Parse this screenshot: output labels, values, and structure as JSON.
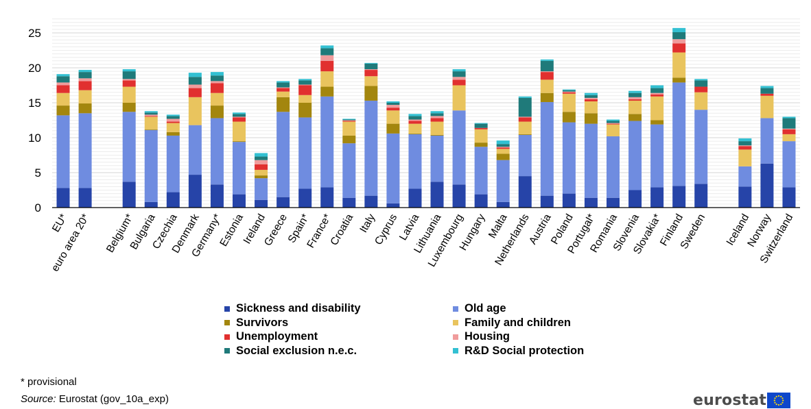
{
  "chart_data": {
    "type": "bar",
    "stacked": true,
    "yticks": [
      0,
      5,
      10,
      15,
      20,
      25
    ],
    "ylim": [
      0,
      27
    ],
    "grid": true,
    "legend_position": "bottom",
    "categories": [
      "EU*",
      "euro area 20*",
      "",
      "Belgium*",
      "Bulgaria",
      "Czechia",
      "Denmark",
      "Germany*",
      "Estonia",
      "Ireland",
      "Greece",
      "Spain*",
      "France*",
      "Croatia",
      "Italy",
      "Cyprus",
      "Latvia",
      "Lithuania",
      "Luxembourg",
      "Hungary",
      "Malta",
      "Netherlands",
      "Austria",
      "Poland",
      "Portugal*",
      "Romania",
      "Slovenia",
      "Slovakia*",
      "Finland",
      "Sweden",
      "",
      "Iceland",
      "Norway",
      "Switzerland"
    ],
    "series": [
      {
        "name": "Sickness and disability",
        "color": "#2644a8",
        "values": [
          2.8,
          2.8,
          null,
          3.7,
          0.8,
          2.2,
          4.7,
          3.3,
          1.9,
          1.1,
          1.5,
          2.7,
          2.9,
          1.4,
          1.7,
          0.6,
          2.7,
          3.7,
          3.3,
          1.9,
          0.8,
          4.5,
          1.7,
          2.0,
          1.4,
          1.4,
          2.5,
          2.9,
          3.1,
          3.4,
          null,
          3.0,
          6.3,
          2.9
        ]
      },
      {
        "name": "Old age",
        "color": "#6f8ce0",
        "values": [
          10.4,
          10.7,
          null,
          10.0,
          10.3,
          8.1,
          7.1,
          9.5,
          7.5,
          3.1,
          12.2,
          10.2,
          13.0,
          7.8,
          13.6,
          10.0,
          7.8,
          6.6,
          10.6,
          6.8,
          6.0,
          5.9,
          13.4,
          10.2,
          10.6,
          8.8,
          9.9,
          9.0,
          14.8,
          10.6,
          null,
          2.9,
          6.5,
          6.6
        ]
      },
      {
        "name": "Survivors",
        "color": "#a3860e",
        "values": [
          1.4,
          1.4,
          null,
          1.3,
          0.1,
          0.5,
          0.0,
          1.8,
          0.1,
          0.4,
          2.1,
          2.1,
          1.4,
          1.1,
          2.1,
          1.4,
          0.1,
          0.1,
          0.0,
          0.6,
          0.9,
          0.1,
          1.3,
          1.5,
          1.5,
          0.0,
          1.0,
          0.6,
          0.7,
          0.0,
          null,
          0.0,
          0.0,
          0.0
        ]
      },
      {
        "name": "Family and children",
        "color": "#e9c45e",
        "values": [
          1.8,
          1.9,
          null,
          2.3,
          1.8,
          1.3,
          4.0,
          1.8,
          2.8,
          0.8,
          0.8,
          1.1,
          2.2,
          2.0,
          1.4,
          1.9,
          1.4,
          1.9,
          3.6,
          1.9,
          0.7,
          1.8,
          1.9,
          2.6,
          1.7,
          1.7,
          1.9,
          3.4,
          3.6,
          2.5,
          null,
          2.4,
          3.2,
          1.0
        ]
      },
      {
        "name": "Unemployment",
        "color": "#e1302f",
        "values": [
          1.1,
          1.3,
          null,
          0.9,
          0.1,
          0.2,
          1.3,
          1.4,
          0.6,
          0.8,
          0.5,
          1.4,
          1.5,
          0.1,
          0.9,
          0.4,
          0.4,
          0.5,
          0.8,
          0.2,
          0.2,
          0.6,
          1.1,
          0.2,
          0.3,
          0.1,
          0.2,
          0.3,
          1.3,
          0.8,
          null,
          0.5,
          0.3,
          0.7
        ]
      },
      {
        "name": "Housing",
        "color": "#f09c9c",
        "values": [
          0.4,
          0.4,
          null,
          0.2,
          0.2,
          0.4,
          0.5,
          0.3,
          0.1,
          0.6,
          0.1,
          0.1,
          0.8,
          0.1,
          0.1,
          0.4,
          0.2,
          0.3,
          0.4,
          0.0,
          0.1,
          0.1,
          0.1,
          0.1,
          0.2,
          0.1,
          0.3,
          0.2,
          0.6,
          0.0,
          null,
          0.1,
          0.0,
          0.1
        ]
      },
      {
        "name": "Social exclusion n.e.c.",
        "color": "#1f7a7a",
        "values": [
          0.9,
          0.9,
          null,
          1.1,
          0.3,
          0.4,
          1.1,
          0.8,
          0.4,
          0.5,
          0.7,
          0.6,
          1.0,
          0.1,
          0.8,
          0.3,
          0.5,
          0.4,
          0.8,
          0.6,
          0.4,
          2.7,
          1.5,
          0.2,
          0.4,
          0.3,
          0.6,
          0.7,
          1.0,
          0.9,
          null,
          0.6,
          0.8,
          1.5
        ]
      },
      {
        "name": "R&D Social protection",
        "color": "#33c0d2",
        "values": [
          0.3,
          0.3,
          null,
          0.3,
          0.2,
          0.2,
          0.6,
          0.5,
          0.2,
          0.5,
          0.2,
          0.2,
          0.4,
          0.1,
          0.1,
          0.2,
          0.3,
          0.3,
          0.3,
          0.1,
          0.5,
          0.2,
          0.2,
          0.1,
          0.3,
          0.2,
          0.3,
          0.4,
          0.6,
          0.2,
          null,
          0.4,
          0.3,
          0.2
        ]
      }
    ]
  },
  "footnote": "* provisional",
  "source": {
    "label": "Source:",
    "text": "Eurostat (gov_10a_exp)"
  },
  "logo": {
    "text": "eurostat"
  }
}
